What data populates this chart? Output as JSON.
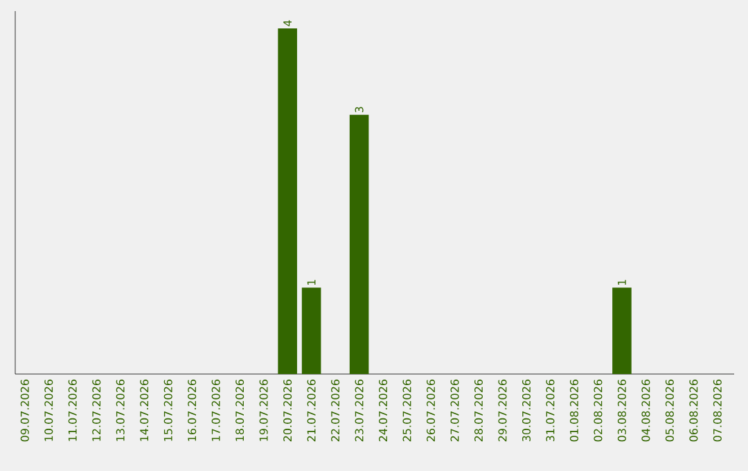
{
  "chart_data": {
    "type": "bar",
    "categories": [
      "09.07.2026",
      "10.07.2026",
      "11.07.2026",
      "12.07.2026",
      "13.07.2026",
      "14.07.2026",
      "15.07.2026",
      "16.07.2026",
      "17.07.2026",
      "18.07.2026",
      "19.07.2026",
      "20.07.2026",
      "21.07.2026",
      "22.07.2026",
      "23.07.2026",
      "24.07.2026",
      "25.07.2026",
      "26.07.2026",
      "27.07.2026",
      "28.07.2026",
      "29.07.2026",
      "30.07.2026",
      "31.07.2026",
      "01.08.2026",
      "02.08.2026",
      "03.08.2026",
      "04.08.2026",
      "05.08.2026",
      "06.08.2026",
      "07.08.2026"
    ],
    "values": [
      0,
      0,
      0,
      0,
      0,
      0,
      0,
      0,
      0,
      0,
      0,
      4,
      1,
      0,
      3,
      0,
      0,
      0,
      0,
      0,
      0,
      0,
      0,
      0,
      0,
      1,
      0,
      0,
      0,
      0
    ],
    "value_labels": [
      null,
      null,
      null,
      null,
      null,
      null,
      null,
      null,
      null,
      null,
      null,
      "4",
      "1",
      null,
      "3",
      null,
      null,
      null,
      null,
      null,
      null,
      null,
      null,
      null,
      null,
      "1",
      null,
      null,
      null,
      null
    ],
    "color": "#336600",
    "ylim": [
      0,
      4.2
    ],
    "tick_labels": "x"
  }
}
